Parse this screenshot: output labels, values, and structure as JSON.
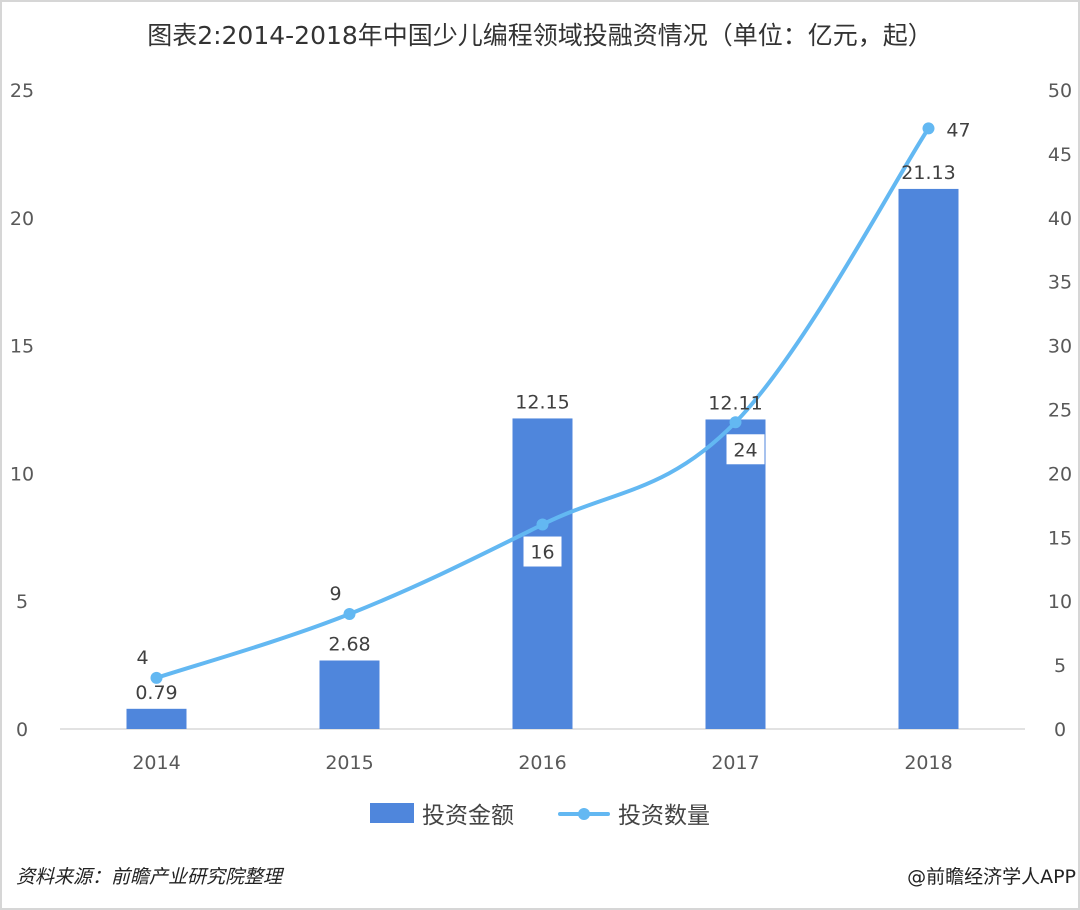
{
  "title": "图表2:2014-2018年中国少儿编程领域投融资情况（单位：亿元，起）",
  "source": "资料来源：前瞻产业研究院整理",
  "credit": "@前瞻经济学人APP",
  "colors": {
    "bar": "#4f86dc",
    "line": "#63b8f2",
    "axis_text": "#595959",
    "baseline": "#d9d9d9"
  },
  "chart_data": {
    "type": "bar+line",
    "categories": [
      "2014",
      "2015",
      "2016",
      "2017",
      "2018"
    ],
    "y_left": {
      "min": 0,
      "max": 25,
      "ticks": [
        "0",
        "5",
        "10",
        "15",
        "20",
        "25"
      ]
    },
    "y_right": {
      "min": 0,
      "max": 50,
      "ticks": [
        "0",
        "5",
        "10",
        "15",
        "20",
        "25",
        "30",
        "35",
        "40",
        "45",
        "50"
      ]
    },
    "series": [
      {
        "name": "投资金额",
        "type": "bar",
        "axis": "left",
        "values": [
          0.79,
          2.68,
          12.15,
          12.11,
          21.13
        ],
        "labels": [
          "0.79",
          "2.68",
          "12.15",
          "12.11",
          "21.13"
        ]
      },
      {
        "name": "投资数量",
        "type": "line",
        "axis": "right",
        "values": [
          4,
          9,
          16,
          24,
          47
        ],
        "labels": [
          "4",
          "9",
          "16",
          "24",
          "47"
        ]
      }
    ],
    "legend": "bottom"
  }
}
